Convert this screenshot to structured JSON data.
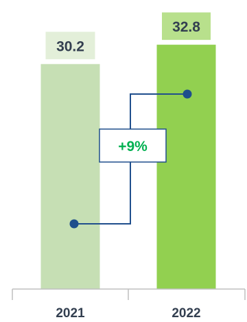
{
  "chart_data": {
    "type": "bar",
    "categories": [
      "2021",
      "2022"
    ],
    "values": [
      30.2,
      32.8
    ],
    "data_labels": [
      "30.2",
      "32.8"
    ],
    "change_label": "+9%",
    "title": "",
    "xlabel": "",
    "ylabel": "",
    "grid": false,
    "legend": "none",
    "colors": {
      "bars": [
        "#c6dfb4",
        "#92d050"
      ],
      "label_backgrounds": [
        "#e3efd9",
        "#b8e08c"
      ],
      "connector": "#1f4e8c",
      "change_text": "#00b050",
      "axis": "#bfbfbf",
      "text": "#333f50"
    }
  }
}
